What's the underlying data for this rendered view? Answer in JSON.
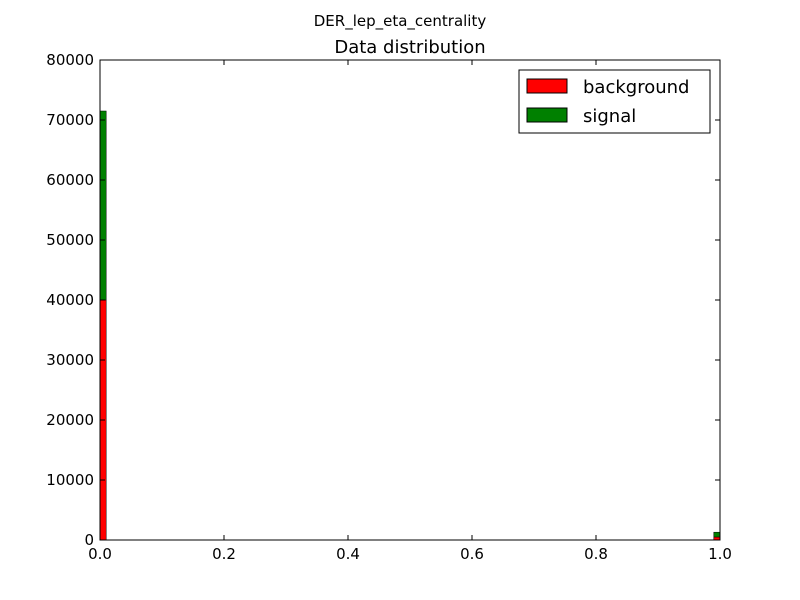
{
  "chart_data": {
    "type": "bar",
    "stacked": true,
    "suptitle": "DER_lep_eta_centrality",
    "title": "Data distribution",
    "xlabel": "",
    "ylabel": "",
    "xlim": [
      0.0,
      1.0
    ],
    "ylim": [
      0,
      80000
    ],
    "xticks": [
      "0.0",
      "0.2",
      "0.4",
      "0.6",
      "0.8",
      "1.0"
    ],
    "yticks": [
      "0",
      "10000",
      "20000",
      "30000",
      "40000",
      "50000",
      "60000",
      "70000",
      "80000"
    ],
    "grid": false,
    "legend_position": "top-right",
    "bin_width": 0.01,
    "series": [
      {
        "name": "background",
        "color": "#ff0000",
        "bins": [
          {
            "x_start": 0.0,
            "value": 40000
          },
          {
            "x_start": 0.99,
            "value": 500
          }
        ]
      },
      {
        "name": "signal",
        "color": "#008000",
        "bins": [
          {
            "x_start": 0.0,
            "value": 31500
          },
          {
            "x_start": 0.99,
            "value": 800
          }
        ]
      }
    ]
  }
}
